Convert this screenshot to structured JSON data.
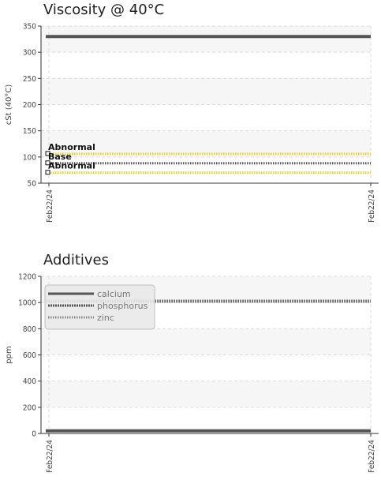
{
  "chart_data": [
    {
      "type": "line",
      "title": "Viscosity @ 40°C",
      "ylabel": "cSt (40°C)",
      "xlabel": "",
      "ylim": [
        50,
        350
      ],
      "yticks": [
        50,
        100,
        150,
        200,
        250,
        300,
        350
      ],
      "x_tick_labels": [
        "Feb22/24",
        "Feb22/24"
      ],
      "grid": true,
      "series": [
        {
          "values": [
            330,
            330
          ],
          "color": "#555555",
          "style": "solid"
        }
      ],
      "reference_lines": [
        {
          "label": "Abnormal",
          "value": 106,
          "color": "#e6d21e",
          "style": "dotted"
        },
        {
          "label": "Base",
          "value": 88,
          "color": "#555555",
          "style": "dotted"
        },
        {
          "label": "Abnormal",
          "value": 70,
          "color": "#e6d21e",
          "style": "dotted"
        }
      ]
    },
    {
      "type": "line",
      "title": "Additives",
      "ylabel": "ppm",
      "xlabel": "",
      "ylim": [
        0,
        1200
      ],
      "yticks": [
        0,
        200,
        400,
        600,
        800,
        1000,
        1200
      ],
      "x_tick_labels": [
        "Feb22/24",
        "Feb22/24"
      ],
      "grid": true,
      "legend_position": "top-left",
      "series": [
        {
          "name": "calcium",
          "values": [
            20,
            20
          ],
          "color": "#555555",
          "style": "solid"
        },
        {
          "name": "phosphorus",
          "values": [
            1010,
            1010
          ],
          "color": "#555555",
          "style": "dashed"
        },
        {
          "name": "zinc",
          "values": [
            1010,
            1010
          ],
          "color": "#888888",
          "style": "dotted"
        }
      ]
    }
  ]
}
